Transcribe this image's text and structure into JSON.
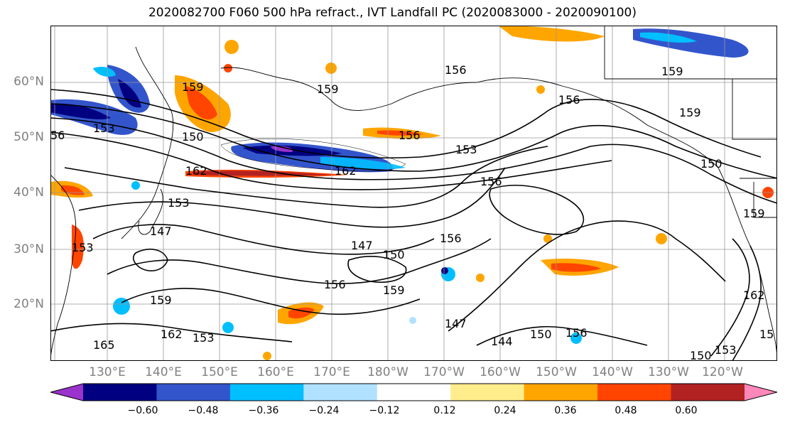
{
  "title": "2020082700 F060 500 hPa refract., IVT Landfall PC (2020083000 - 2020090100)",
  "lat_labels": [
    "60°N",
    "50°N",
    "40°N",
    "30°N",
    "20°N"
  ],
  "lon_labels": [
    "130°E",
    "140°E",
    "150°E",
    "160°E",
    "170°E",
    "180°W",
    "170°W",
    "160°W",
    "150°W",
    "140°W",
    "130°W",
    "120°W"
  ],
  "contour_labels": [
    "156",
    "159",
    "156",
    "159",
    "159",
    "56",
    "153",
    "150",
    "156",
    "153",
    "162",
    "162",
    "156",
    "150",
    "159",
    "153",
    "147",
    "156",
    "147",
    "150",
    "159",
    "156",
    "159",
    "147",
    "153",
    "162",
    "165",
    "162",
    "153",
    "159",
    "144",
    "150",
    "156",
    "150",
    "153",
    "15"
  ],
  "colorbar": {
    "ticks": [
      "−0.60",
      "−0.48",
      "−0.36",
      "−0.24",
      "−0.12",
      "0.12",
      "0.24",
      "0.36",
      "0.48",
      "0.60"
    ],
    "colors": [
      "#9933cc",
      "#000080",
      "#3355cc",
      "#00bfff",
      "#b0e2ff",
      "#ffffff",
      "#ffec8b",
      "#ffa500",
      "#ff4500",
      "#b22222",
      "#ff88bb"
    ]
  }
}
